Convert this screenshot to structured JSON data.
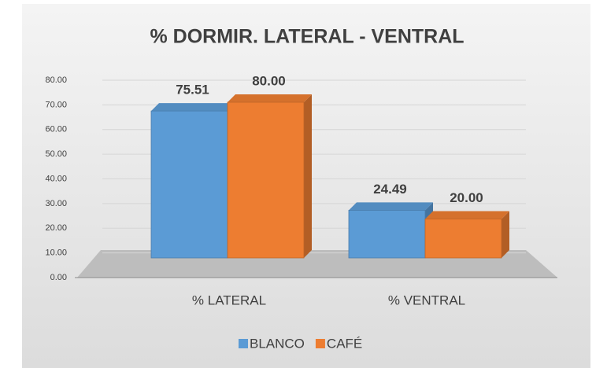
{
  "chart_data": {
    "type": "bar3d",
    "title": "% DORMIR. LATERAL - VENTRAL",
    "categories": [
      "% LATERAL",
      "% VENTRAL"
    ],
    "series": [
      {
        "name": "BLANCO",
        "color": "#5b9bd5",
        "values": [
          75.51,
          24.49
        ],
        "value_labels": [
          "75.51",
          "24.49"
        ]
      },
      {
        "name": "CAFÉ",
        "color": "#ed7d31",
        "values": [
          80.0,
          20.0
        ],
        "value_labels": [
          "80.00",
          "20.00"
        ]
      }
    ],
    "ylim": [
      0,
      80
    ],
    "yticks": [
      {
        "value": 0,
        "label": "0.00"
      },
      {
        "value": 10,
        "label": "10.00"
      },
      {
        "value": 20,
        "label": "20.00"
      },
      {
        "value": 30,
        "label": "30.00"
      },
      {
        "value": 40,
        "label": "40.00"
      },
      {
        "value": 50,
        "label": "50.00"
      },
      {
        "value": 60,
        "label": "60.00"
      },
      {
        "value": 70,
        "label": "70.00"
      },
      {
        "value": 80,
        "label": "80.00"
      }
    ],
    "grid": true,
    "legend": "bottom"
  }
}
